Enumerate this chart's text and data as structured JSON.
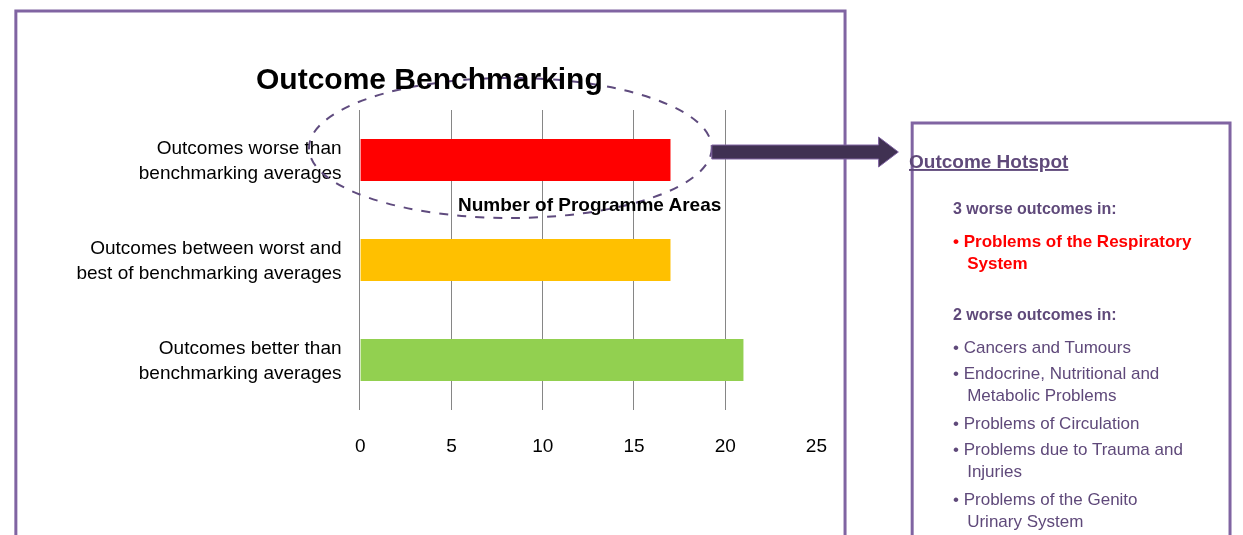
{
  "chart_data": [
    {
      "type": "bar",
      "orientation": "horizontal",
      "title": "Outcome Benchmarking",
      "xlabel": "Number of Programme Areas",
      "categories": [
        "Outcomes worse than benchmarking averages",
        "Outcomes between worst and best of benchmarking averages",
        "Outcomes better than benchmarking averages"
      ],
      "values": [
        17,
        17,
        21
      ],
      "colors": [
        "#ff0000",
        "#ffc000",
        "#92d050"
      ],
      "xlim": [
        0,
        25
      ],
      "xticks": [
        0,
        5,
        10,
        15,
        20,
        25
      ],
      "grid": "x"
    },
    {
      "type": "other",
      "title": "Outcome Hotspot",
      "annotations": [
        "3 worse outcomes in:",
        "• Problems of the Respiratory System",
        "2 worse outcomes in:",
        "• Cancers and Tumours",
        "• Endocrine, Nutritional and Metabolic Problems",
        "• Problems of Circulation",
        "• Problems due to Trauma and Injuries",
        "• Problems of the Genito Urinary System"
      ]
    }
  ]
}
